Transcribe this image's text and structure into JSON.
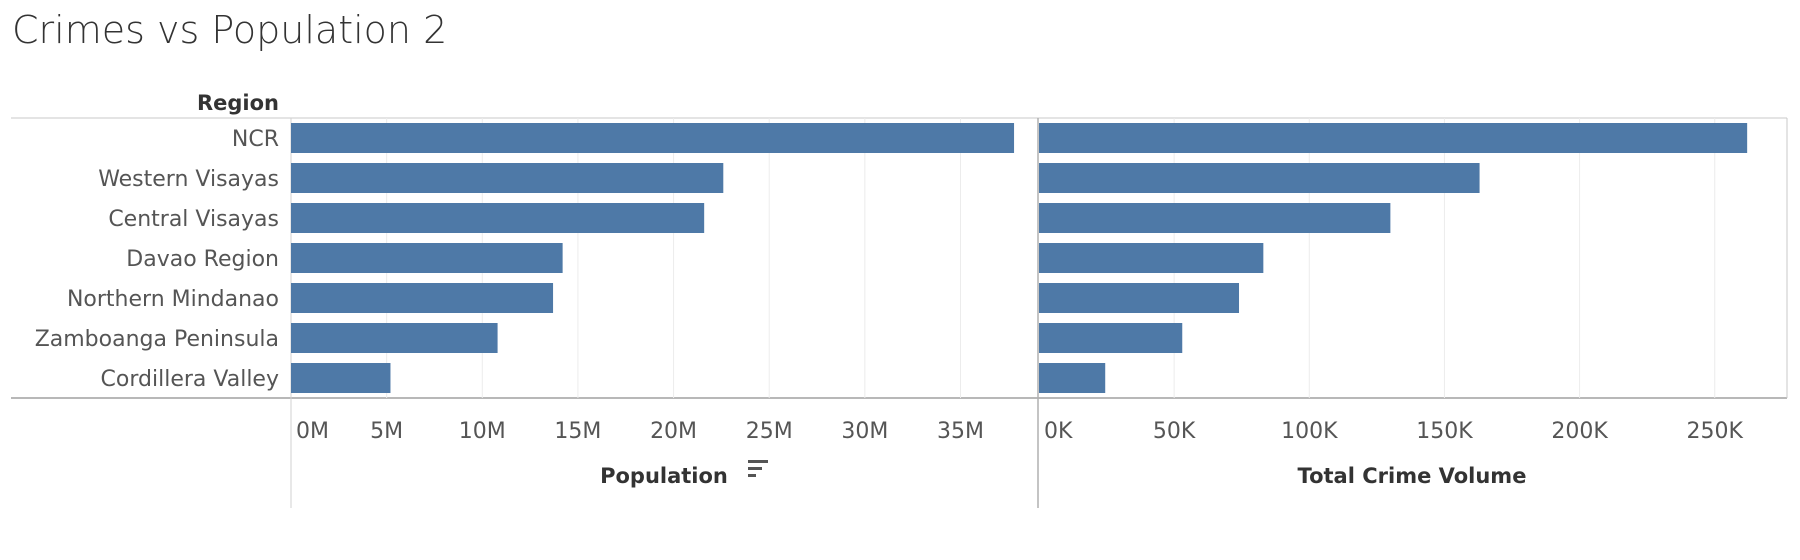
{
  "title": "Crimes vs Population 2",
  "chart_data": {
    "type": "bar",
    "orientation": "horizontal",
    "row_header": "Region",
    "categories": [
      "NCR",
      "Western Visayas",
      "Central Visayas",
      "Davao Region",
      "Northern Mindanao",
      "Zamboanga  Peninsula",
      "Cordillera Valley"
    ],
    "bar_color": "#4e79a7",
    "grid": true,
    "panels": [
      {
        "xlabel": "Population",
        "sort_icon": "sort-descending-icon",
        "xlim": [
          0,
          39000000
        ],
        "ticks": [
          0,
          5000000,
          10000000,
          15000000,
          20000000,
          25000000,
          30000000,
          35000000
        ],
        "tick_labels": [
          "0M",
          "5M",
          "10M",
          "15M",
          "20M",
          "25M",
          "30M",
          "35M"
        ],
        "values": [
          37800000,
          22600000,
          21600000,
          14200000,
          13700000,
          10800000,
          5200000
        ]
      },
      {
        "xlabel": "Total Crime Volume",
        "xlim": [
          0,
          276000
        ],
        "ticks": [
          0,
          50000,
          100000,
          150000,
          200000,
          250000
        ],
        "tick_labels": [
          "0K",
          "50K",
          "100K",
          "150K",
          "200K",
          "250K"
        ],
        "values": [
          262000,
          163000,
          130000,
          83000,
          74000,
          53000,
          24500
        ]
      }
    ]
  }
}
